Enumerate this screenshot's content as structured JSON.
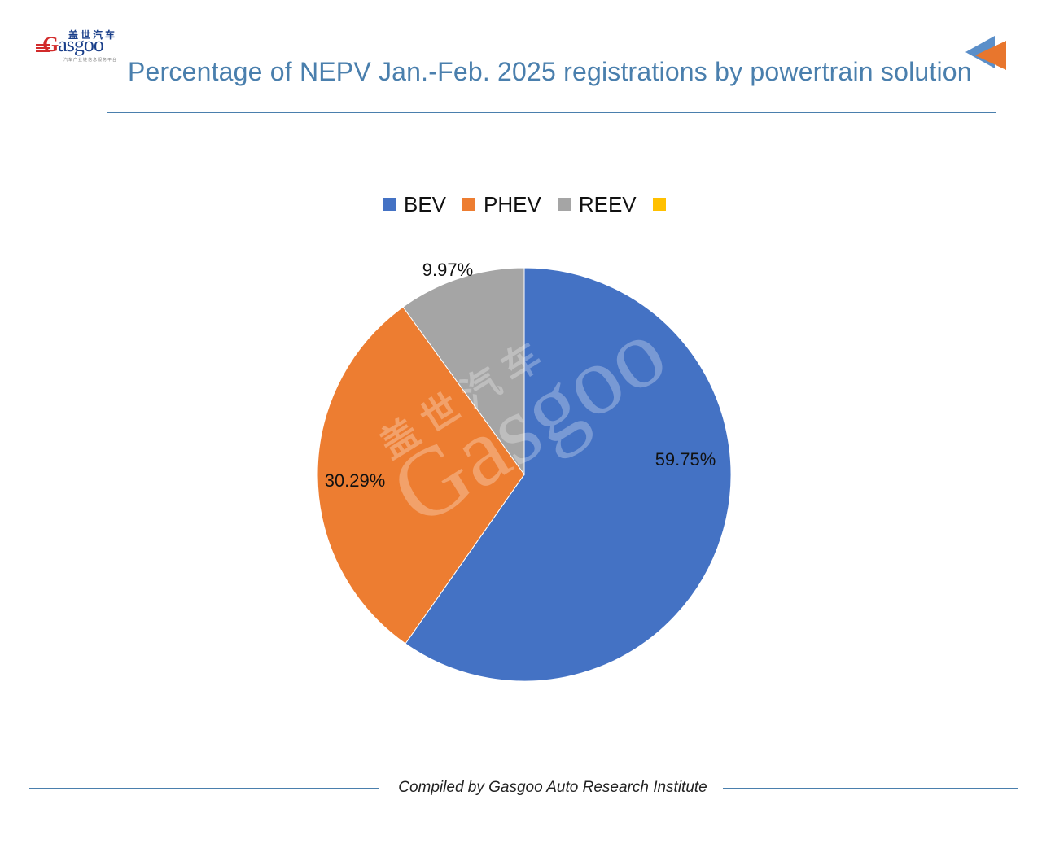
{
  "brand": {
    "logo_word_g": "G",
    "logo_word_rest": "asgoo",
    "logo_cn": "盖世汽车",
    "logo_sub": "汽车产业链信息服务平台"
  },
  "header": {
    "title": "Percentage of NEPV Jan.-Feb. 2025 registrations by powertrain solution"
  },
  "colors": {
    "BEV": "#4472c4",
    "PHEV": "#ed7d31",
    "REEV": "#a5a5a5",
    "Other": "#ffc000",
    "title_blue": "#4a7fad",
    "corner_orange": "#e8762d",
    "corner_blue": "#5b8fc9"
  },
  "chart_data": {
    "type": "pie",
    "title": "Percentage of NEPV Jan.-Feb. 2025 registrations by powertrain solution",
    "unit": "%",
    "legend_position": "top",
    "categories": [
      "BEV",
      "PHEV",
      "REEV",
      ""
    ],
    "values": [
      59.75,
      30.29,
      9.97,
      0
    ],
    "data_labels": [
      "59.75%",
      "30.29%",
      "9.97%",
      ""
    ],
    "watermark": "盖世汽车 Gasgoo"
  },
  "footer": {
    "text": "Compiled by Gasgoo Auto Research Institute"
  }
}
